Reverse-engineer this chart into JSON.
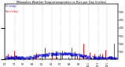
{
  "title": "Milwaukee Weather Evapotranspiration vs Rain per Day (Inches)",
  "background_color": "#ffffff",
  "grid_color": "#888888",
  "et_color": "#0000cc",
  "rain_color": "#cc0000",
  "black_color": "#000000",
  "ylim": [
    0,
    0.35
  ],
  "ytick_values": [
    0.05,
    0.1,
    0.15,
    0.2,
    0.25,
    0.3
  ],
  "ytick_labels": [
    "0.05",
    "0.10",
    "0.15",
    "0.20",
    "0.25",
    "0.30"
  ],
  "num_days": 365,
  "month_starts": [
    0,
    31,
    59,
    90,
    120,
    151,
    181,
    212,
    243,
    273,
    304,
    334
  ],
  "month_labels": [
    "1/1",
    "2/1",
    "3/1",
    "4/1",
    "5/1",
    "6/1",
    "7/1",
    "8/1",
    "9/1",
    "10/1",
    "11/1",
    "12/1"
  ],
  "legend_et": "ET (in/day)",
  "legend_rain": "Rain (in/day)"
}
